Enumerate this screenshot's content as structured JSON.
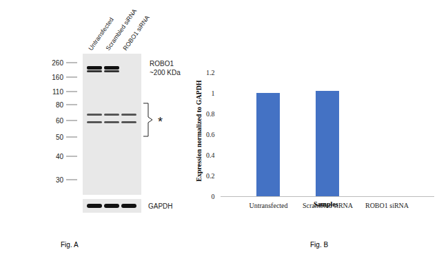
{
  "blot": {
    "caption": "Fig. A",
    "lanes": [
      "Untransfected",
      "Scrambled siRNA",
      "ROBO1 siRNA"
    ],
    "markers": [
      260,
      160,
      110,
      80,
      60,
      50,
      40,
      30
    ],
    "target": "ROBO1",
    "target_size": "~200 KDa",
    "target_band_present": [
      true,
      true,
      false
    ],
    "nonspecific_mark": "*",
    "loading_control": "GAPDH"
  },
  "chart_data": {
    "type": "bar",
    "caption": "Fig. B",
    "categories": [
      "Untransfected",
      "Scrambled siRNA",
      "ROBO1 siRNA"
    ],
    "values": [
      1,
      1.02,
      0
    ],
    "color": "#4472c4",
    "xlabel": "Samples",
    "ylabel": "Expression normalized to GAPDH",
    "ylim": [
      0,
      1.2
    ],
    "yticks": [
      0,
      0.2,
      0.4,
      0.6,
      0.8,
      1,
      1.2
    ],
    "grid": false
  }
}
